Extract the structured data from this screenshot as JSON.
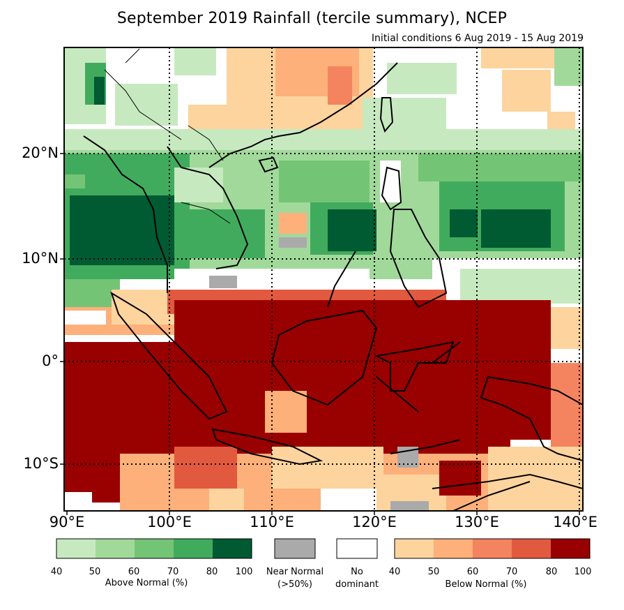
{
  "title": "September 2019 Rainfall (tercile summary), NCEP",
  "subtitle": "Initial conditions 6 Aug 2019 - 15 Aug 2019",
  "map": {
    "lat_labels": [
      "20°N",
      "10°N",
      "0°",
      "10°S"
    ],
    "lon_labels": [
      "90°E",
      "100°E",
      "110°E",
      "120°E",
      "130°E",
      "140°E"
    ],
    "lon_range": [
      90,
      140
    ],
    "lat_range": [
      -14.5,
      30
    ]
  },
  "legend": {
    "above": {
      "caption": "Above Normal (%)",
      "ticks": [
        "40",
        "50",
        "60",
        "70",
        "80",
        "100"
      ],
      "colors": [
        "#c7e9c0",
        "#a1d99b",
        "#74c476",
        "#41ab5d",
        "#005a32"
      ]
    },
    "near": {
      "caption_line1": "Near Normal",
      "caption_line2": "(>50%)",
      "color": "#aaaaaa"
    },
    "nodominant": {
      "caption_line1": "No",
      "caption_line2": "dominant",
      "color": "#ffffff"
    },
    "below": {
      "caption": "Below Normal (%)",
      "ticks": [
        "40",
        "50",
        "60",
        "70",
        "80",
        "100"
      ],
      "colors": [
        "#fdd49e",
        "#fdb07a",
        "#f4845f",
        "#e15a3f",
        "#990000"
      ]
    }
  }
}
